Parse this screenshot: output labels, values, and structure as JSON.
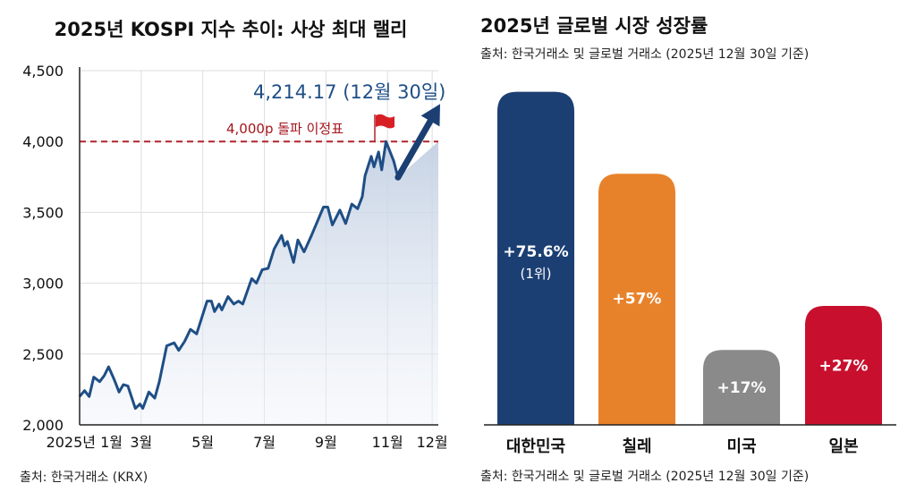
{
  "chart_data": [
    {
      "type": "line",
      "title": "2025년 KOSPI 지수 추이: 사상 최대 랠리",
      "source": "출처: 한국거래소 (KRX)",
      "xlabel": "",
      "ylabel": "",
      "ylim": [
        2000,
        4500
      ],
      "yticks": [
        "2,000",
        "2,500",
        "3,000",
        "3,500",
        "4,000",
        "4,500"
      ],
      "ytick_values": [
        2000,
        2500,
        3000,
        3500,
        4000,
        4500
      ],
      "xticks": [
        "2025년 1월",
        "3월",
        "5월",
        "7월",
        "9월",
        "11월",
        "12월"
      ],
      "grid": true,
      "area_fill": true,
      "colors": {
        "line": "#1f4e85",
        "fill": "#c9d5e6",
        "milestone": "#b0232a",
        "arrow": "#1c3f73"
      },
      "series": [
        {
          "x_unit": "month",
          "points": [
            [
              1.0,
              2200
            ],
            [
              1.16,
              2242
            ],
            [
              1.31,
              2200
            ],
            [
              1.46,
              2337
            ],
            [
              1.65,
              2305
            ],
            [
              1.8,
              2347
            ],
            [
              1.94,
              2410
            ],
            [
              2.13,
              2316
            ],
            [
              2.28,
              2232
            ],
            [
              2.42,
              2284
            ],
            [
              2.57,
              2274
            ],
            [
              2.81,
              2116
            ],
            [
              2.96,
              2147
            ],
            [
              3.05,
              2116
            ],
            [
              3.25,
              2232
            ],
            [
              3.44,
              2189
            ],
            [
              3.59,
              2305
            ],
            [
              3.83,
              2558
            ],
            [
              4.07,
              2579
            ],
            [
              4.22,
              2526
            ],
            [
              4.41,
              2589
            ],
            [
              4.6,
              2674
            ],
            [
              4.8,
              2642
            ],
            [
              5.14,
              2874
            ],
            [
              5.28,
              2874
            ],
            [
              5.38,
              2800
            ],
            [
              5.53,
              2853
            ],
            [
              5.62,
              2811
            ],
            [
              5.82,
              2905
            ],
            [
              6.01,
              2853
            ],
            [
              6.16,
              2874
            ],
            [
              6.3,
              2853
            ],
            [
              6.59,
              3032
            ],
            [
              6.74,
              3000
            ],
            [
              6.93,
              3095
            ],
            [
              7.12,
              3105
            ],
            [
              7.32,
              3242
            ],
            [
              7.56,
              3337
            ],
            [
              7.66,
              3263
            ],
            [
              7.75,
              3295
            ],
            [
              7.95,
              3147
            ],
            [
              8.09,
              3305
            ],
            [
              8.29,
              3221
            ],
            [
              8.53,
              3337
            ],
            [
              8.92,
              3537
            ],
            [
              9.06,
              3537
            ],
            [
              9.21,
              3411
            ],
            [
              9.45,
              3516
            ],
            [
              9.64,
              3421
            ],
            [
              9.84,
              3558
            ],
            [
              10.03,
              3526
            ],
            [
              10.18,
              3611
            ],
            [
              10.27,
              3758
            ],
            [
              10.47,
              3895
            ],
            [
              10.56,
              3821
            ],
            [
              10.71,
              3926
            ],
            [
              10.81,
              3800
            ],
            [
              10.95,
              4000
            ],
            [
              11.2,
              3863
            ],
            [
              11.34,
              3747
            ]
          ]
        }
      ],
      "final_value": 4214.17,
      "annotations": {
        "final": "4,214.17 (12월 30일)",
        "milestone": "4,000p 돌파 이정표",
        "milestone_value": 4000,
        "milestone_icon": "red-flag-icon"
      }
    },
    {
      "type": "bar",
      "title": "2025년 글로벌 시장 성장률",
      "subtitle": "출처: 한국거래소 및 글로벌 거래소 (2025년 12월 30일 기준)",
      "source": "출처: 한국거래소 및 글로벌 거래소 (2025년 12월 30일 기준)",
      "categories": [
        "대한민국",
        "칠레",
        "미국",
        "일본"
      ],
      "values": [
        75.6,
        57,
        17,
        27
      ],
      "labels": [
        "+75.6%",
        "+57%",
        "+17%",
        "+27%"
      ],
      "rank_label": "(1위)",
      "colors": [
        "#1c3f73",
        "#e8822a",
        "#8a8a8a",
        "#c8102e"
      ],
      "ylim": [
        0,
        80
      ],
      "unit": "%",
      "grid": false
    }
  ]
}
